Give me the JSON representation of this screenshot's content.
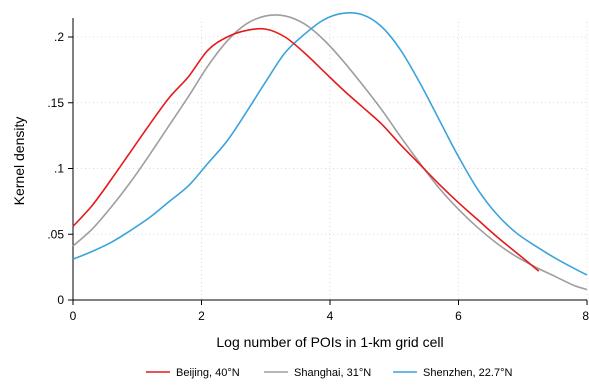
{
  "chart_data": {
    "type": "line",
    "title": "",
    "xlabel": "Log number of POIs in 1-km grid cell",
    "ylabel": "Kernel density",
    "xlim": [
      0,
      8
    ],
    "ylim": [
      0,
      0.22
    ],
    "x_ticks": [
      0,
      2,
      4,
      6,
      8
    ],
    "x_tick_labels": [
      "0",
      "2",
      "4",
      "6",
      "8"
    ],
    "y_ticks": [
      0,
      0.05,
      0.1,
      0.15,
      0.2
    ],
    "y_tick_labels": [
      "0",
      ".05",
      ".1",
      ".15",
      ".2"
    ],
    "grid": true,
    "legend_position": "bottom",
    "series": [
      {
        "name": "Beijing, 40°N",
        "color": "#e41a1c",
        "x": [
          0,
          0.3,
          0.6,
          0.9,
          1.2,
          1.5,
          1.8,
          2.1,
          2.4,
          2.7,
          3.0,
          3.3,
          3.6,
          3.9,
          4.2,
          4.5,
          4.8,
          5.1,
          5.4,
          5.7,
          6.0,
          6.3,
          6.6,
          6.9,
          7.25
        ],
        "y": [
          0.056,
          0.072,
          0.092,
          0.113,
          0.134,
          0.154,
          0.17,
          0.19,
          0.2,
          0.205,
          0.206,
          0.2,
          0.188,
          0.174,
          0.16,
          0.147,
          0.134,
          0.118,
          0.103,
          0.088,
          0.074,
          0.061,
          0.048,
          0.036,
          0.022
        ]
      },
      {
        "name": "Shanghai, 31°N",
        "color": "#9e9e9e",
        "x": [
          0,
          0.3,
          0.6,
          0.9,
          1.2,
          1.5,
          1.8,
          2.1,
          2.4,
          2.7,
          3.0,
          3.3,
          3.6,
          3.9,
          4.2,
          4.5,
          4.8,
          5.1,
          5.4,
          5.7,
          6.0,
          6.3,
          6.6,
          6.9,
          7.2,
          7.5,
          7.8,
          8.0
        ],
        "y": [
          0.041,
          0.054,
          0.071,
          0.09,
          0.111,
          0.133,
          0.155,
          0.178,
          0.197,
          0.21,
          0.216,
          0.216,
          0.21,
          0.198,
          0.182,
          0.164,
          0.145,
          0.124,
          0.104,
          0.085,
          0.069,
          0.055,
          0.043,
          0.033,
          0.025,
          0.018,
          0.011,
          0.008
        ]
      },
      {
        "name": "Shenzhen, 22.7°N",
        "color": "#3ba3dc",
        "x": [
          0,
          0.3,
          0.6,
          0.9,
          1.2,
          1.5,
          1.8,
          2.1,
          2.4,
          2.7,
          3.0,
          3.3,
          3.6,
          3.9,
          4.2,
          4.5,
          4.8,
          5.1,
          5.4,
          5.7,
          6.0,
          6.3,
          6.6,
          6.9,
          7.2,
          7.5,
          7.8,
          8.0
        ],
        "y": [
          0.031,
          0.037,
          0.044,
          0.053,
          0.063,
          0.075,
          0.087,
          0.104,
          0.121,
          0.143,
          0.166,
          0.188,
          0.202,
          0.213,
          0.218,
          0.217,
          0.208,
          0.19,
          0.165,
          0.137,
          0.109,
          0.084,
          0.065,
          0.051,
          0.041,
          0.032,
          0.024,
          0.019
        ]
      }
    ]
  }
}
